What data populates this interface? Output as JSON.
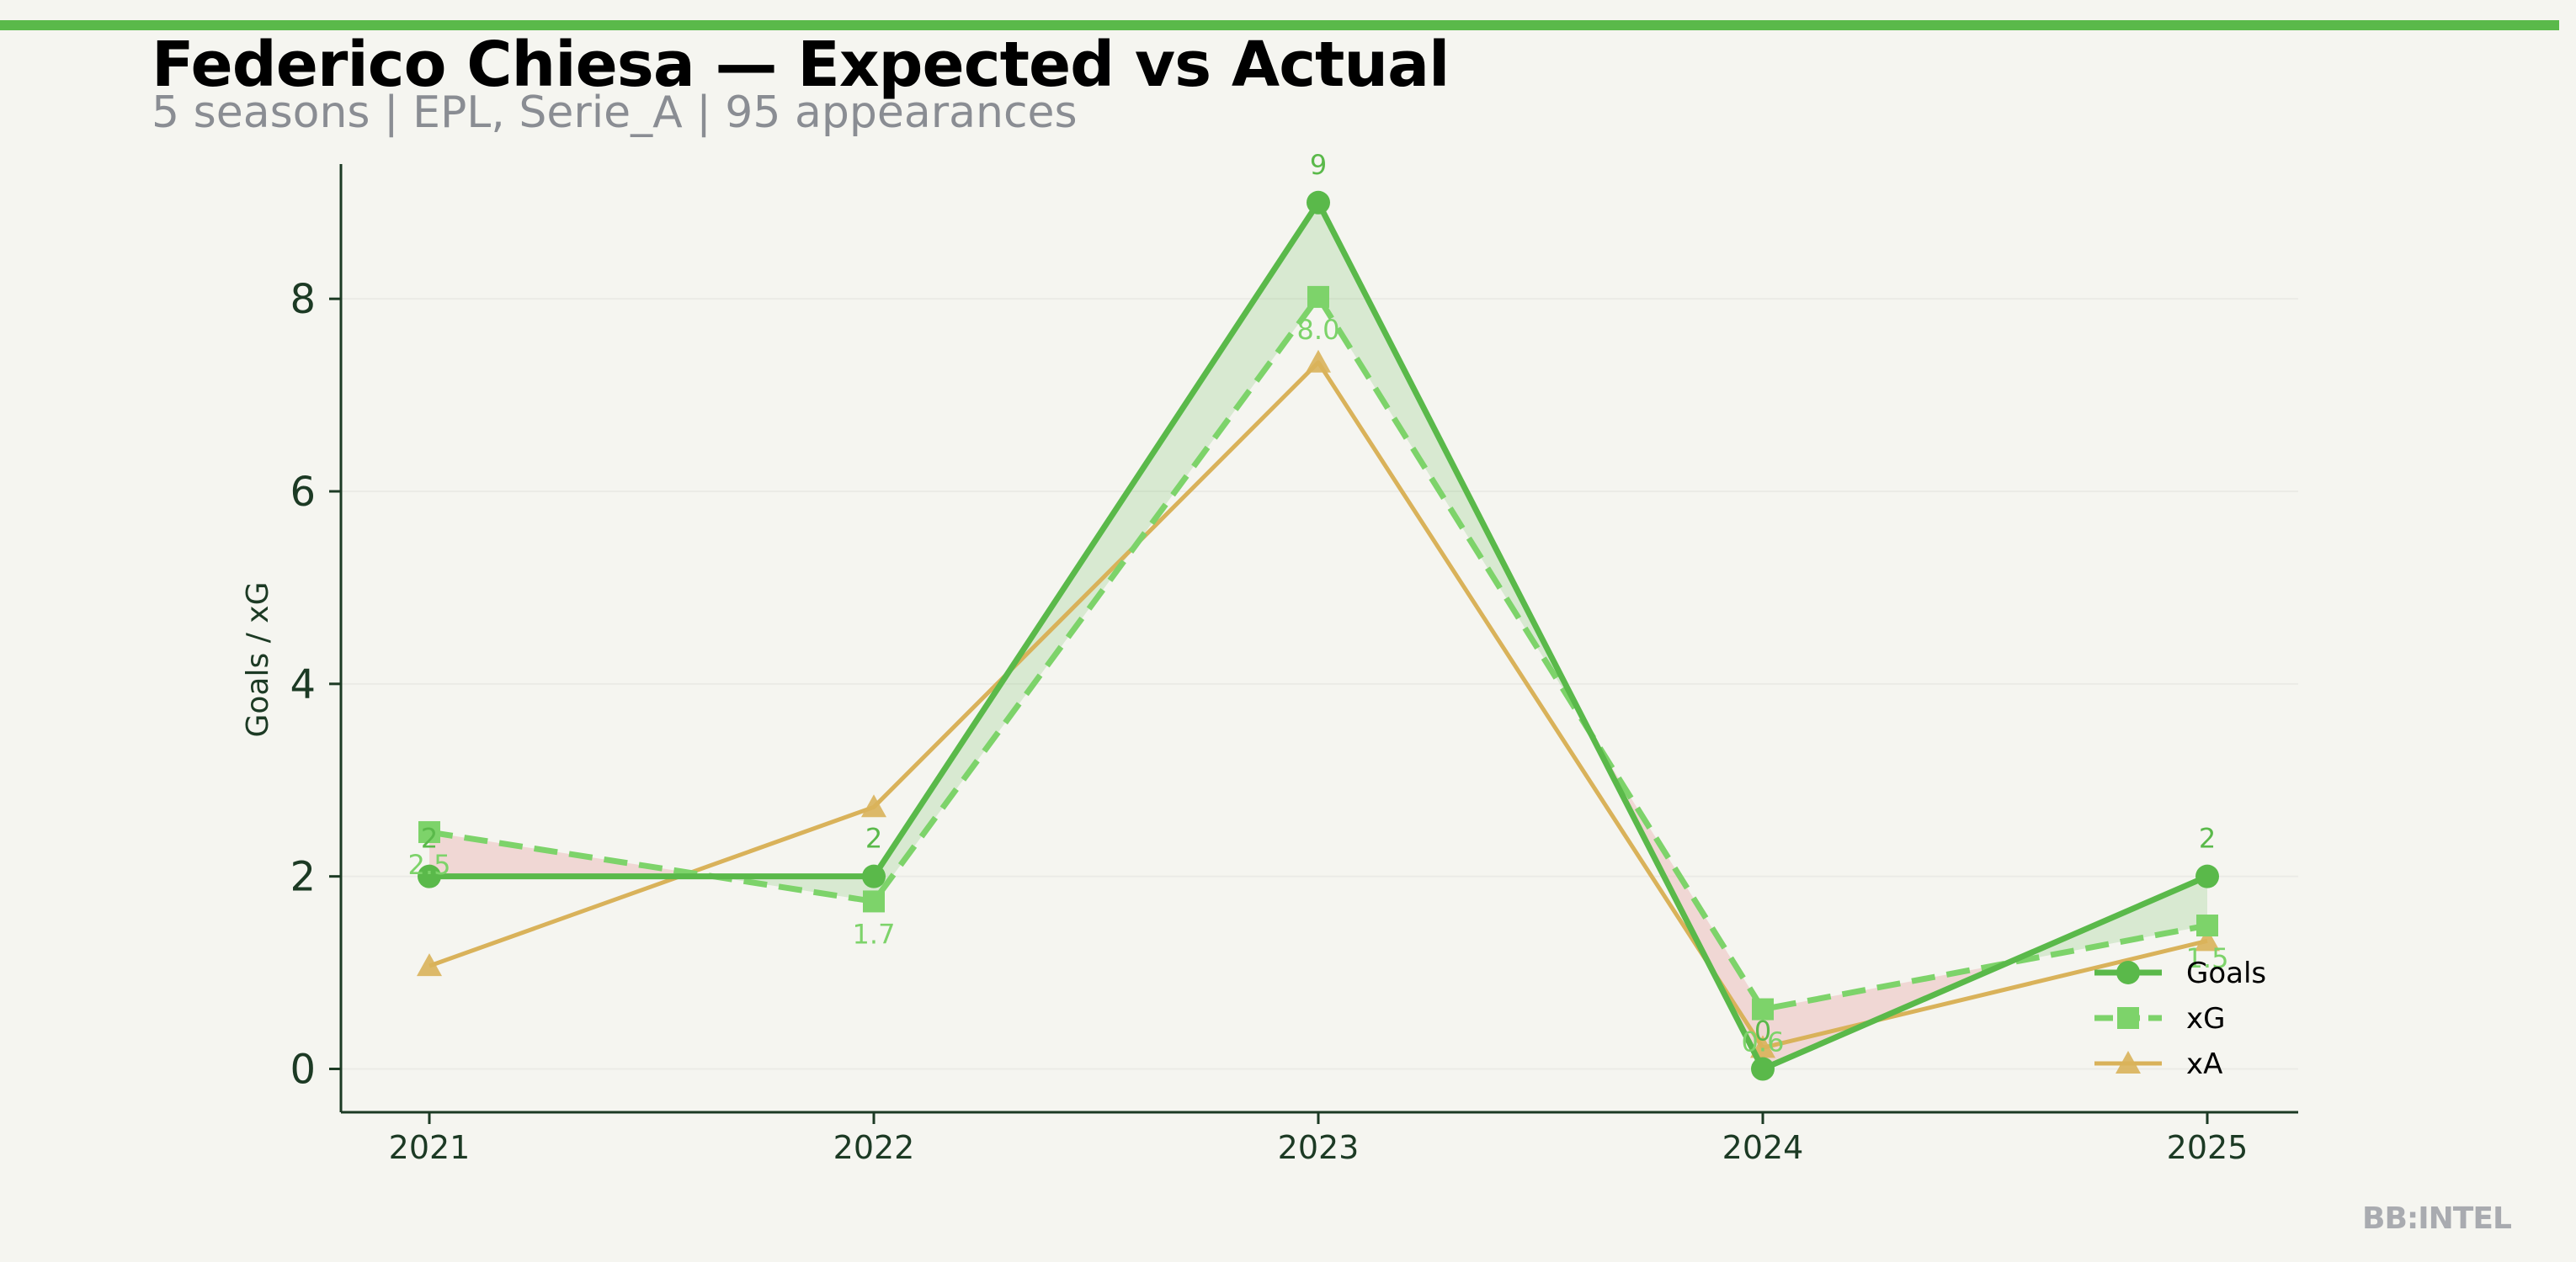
{
  "chart_data": {
    "type": "line",
    "title": "Federico Chiesa — Expected vs Actual",
    "subtitle": "5 seasons | EPL, Serie_A | 95 appearances",
    "xlabel": "",
    "ylabel": "Goals / xG",
    "categories": [
      "2021",
      "2022",
      "2023",
      "2024",
      "2025"
    ],
    "ylim": [
      -0.45,
      9.4
    ],
    "yticks": [
      "0",
      "2",
      "4",
      "6",
      "8"
    ],
    "grid": true,
    "legend_position": "bottom-right",
    "series": [
      {
        "name": "Goals",
        "values": [
          2,
          2,
          9,
          0,
          2
        ],
        "labels": [
          "2",
          "2",
          "9",
          "0",
          "2"
        ],
        "color": "#5ab94a",
        "style": "solid",
        "marker": "circle"
      },
      {
        "name": "xG",
        "values": [
          2.46,
          1.74,
          8.02,
          0.62,
          1.49
        ],
        "labels": [
          "2.5",
          "1.7",
          "8.0",
          "0.6",
          "1.5"
        ],
        "color": "#7dd36a",
        "style": "dashed",
        "marker": "square"
      },
      {
        "name": "xA",
        "values": [
          1.07,
          2.72,
          7.34,
          0.22,
          1.33
        ],
        "color": "#d9b25a",
        "style": "solid",
        "marker": "triangle"
      }
    ],
    "fill_colors": {
      "over": "#5ab94a",
      "under": "#e8a0a0"
    }
  },
  "branding": {
    "mark": "BB:INTEL"
  }
}
